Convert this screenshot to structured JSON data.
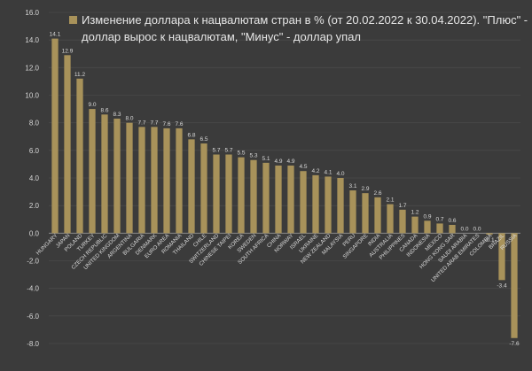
{
  "chart_data": {
    "type": "bar",
    "legend": {
      "line1": "Изменение доллара к нацвалютам стран в % (от 20.02.2022 к 30.04.2022). \"Плюс\" -",
      "line2": "доллар вырос к нацвалютам, \"Минус\" - доллар упал"
    },
    "bar_color": "#a8925a",
    "ylim": [
      -8,
      16
    ],
    "yticks": [
      "16.0",
      "14.0",
      "12.0",
      "10.0",
      "8.0",
      "6.0",
      "4.0",
      "2.0",
      "0.0",
      "-2.0",
      "-4.0",
      "-6.0",
      "-8.0"
    ],
    "categories": [
      "HUNGARY",
      "JAPAN",
      "POLAND",
      "TURKEY",
      "CZECH REPUBLIC",
      "UNITED KINGDOM",
      "ARGENTINA",
      "BULGARIA",
      "DENMARK",
      "EURO AREA",
      "ROMANIA",
      "THAILAND",
      "CHILE",
      "SWITZERLAND",
      "CHINESE TAIPEI",
      "KOREA",
      "SWEDEN",
      "SOUTH AFRICA",
      "CHINA",
      "NORWAY",
      "ISRAEL",
      "UKRAINE",
      "NEW ZEALAND",
      "MALAYSIA",
      "PERU",
      "SINGAPORE",
      "INDIA",
      "AUSTRALIA",
      "PHILIPPINES",
      "CANADA",
      "INDONESIA",
      "MEXICO",
      "HONG KONG SAR",
      "SAUDI ARABIA",
      "UNITED ARAB EMIRATES",
      "COLOMBIA",
      "BRAZIL",
      "RUSSIA"
    ],
    "values": [
      14.1,
      12.9,
      11.2,
      9.0,
      8.6,
      8.3,
      8.0,
      7.7,
      7.7,
      7.6,
      7.6,
      6.8,
      6.5,
      5.7,
      5.7,
      5.5,
      5.3,
      5.1,
      4.9,
      4.9,
      4.5,
      4.2,
      4.1,
      4.0,
      3.1,
      2.9,
      2.6,
      2.1,
      1.7,
      1.2,
      0.9,
      0.7,
      0.6,
      0.0,
      0.0,
      -0.1,
      -3.4,
      -7.6
    ],
    "labels": [
      "14.1",
      "12.9",
      "11.2",
      "9.0",
      "8.6",
      "8.3",
      "8.0",
      "7.7",
      "7.7",
      "7.6",
      "7.6",
      "6.8",
      "6.5",
      "5.7",
      "5.7",
      "5.5",
      "5.3",
      "5.1",
      "4.9",
      "4.9",
      "4.5",
      "4.2",
      "4.1",
      "4.0",
      "3.1",
      "2.9",
      "2.6",
      "2.1",
      "1.7",
      "1.2",
      "0.9",
      "0.7",
      "0.6",
      "0.0",
      "0.0",
      "-0.1",
      "-3.4",
      "-7.6"
    ]
  }
}
